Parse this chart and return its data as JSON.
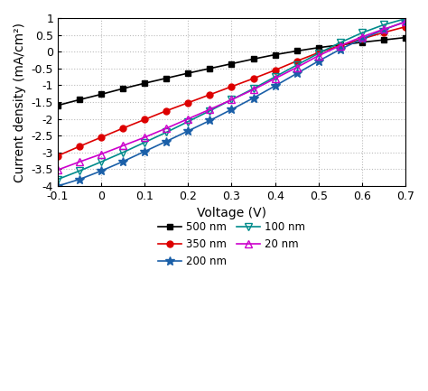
{
  "title": "",
  "xlabel": "Voltage (V)",
  "ylabel": "Current density (mA/cm²)",
  "xlim": [
    -0.1,
    0.7
  ],
  "ylim": [
    -4,
    1
  ],
  "xticks": [
    -0.1,
    0.0,
    0.1,
    0.2,
    0.3,
    0.4,
    0.5,
    0.6,
    0.7
  ],
  "yticks": [
    -4,
    -3.5,
    -3,
    -2.5,
    -2,
    -1.5,
    -1,
    -0.5,
    0,
    0.5,
    1
  ],
  "series": [
    {
      "label": "500 nm",
      "color": "#000000",
      "marker": "s",
      "marker_open": false,
      "marker_color": "#000000",
      "x": [
        -0.1,
        -0.05,
        0.0,
        0.05,
        0.1,
        0.15,
        0.2,
        0.25,
        0.3,
        0.35,
        0.4,
        0.45,
        0.5,
        0.55,
        0.6,
        0.65,
        0.7
      ],
      "y": [
        -1.6,
        -1.43,
        -1.27,
        -1.1,
        -0.94,
        -0.79,
        -0.64,
        -0.5,
        -0.36,
        -0.22,
        -0.09,
        0.02,
        0.12,
        0.2,
        0.28,
        0.35,
        0.42
      ]
    },
    {
      "label": "350 nm",
      "color": "#dd0000",
      "marker": "o",
      "marker_open": false,
      "marker_color": "#dd0000",
      "x": [
        -0.1,
        -0.05,
        0.0,
        0.05,
        0.1,
        0.15,
        0.2,
        0.25,
        0.3,
        0.35,
        0.4,
        0.45,
        0.5,
        0.55,
        0.6,
        0.65,
        0.7
      ],
      "y": [
        -3.1,
        -2.82,
        -2.55,
        -2.28,
        -2.02,
        -1.76,
        -1.52,
        -1.28,
        -1.04,
        -0.8,
        -0.55,
        -0.28,
        -0.03,
        0.18,
        0.38,
        0.57,
        0.74
      ]
    },
    {
      "label": "200 nm",
      "color": "#1a5fa8",
      "marker": "*",
      "marker_open": false,
      "marker_color": "#1a5fa8",
      "x": [
        -0.1,
        -0.05,
        0.0,
        0.05,
        0.1,
        0.15,
        0.2,
        0.25,
        0.3,
        0.35,
        0.4,
        0.45,
        0.5,
        0.55,
        0.6,
        0.65,
        0.7
      ],
      "y": [
        -4.0,
        -3.8,
        -3.55,
        -3.27,
        -2.97,
        -2.67,
        -2.36,
        -2.05,
        -1.72,
        -1.38,
        -1.02,
        -0.65,
        -0.28,
        0.07,
        0.38,
        0.65,
        0.9
      ]
    },
    {
      "label": "100 nm",
      "color": "#008b8b",
      "marker": "v",
      "marker_open": true,
      "marker_color": "#008b8b",
      "x": [
        -0.1,
        -0.05,
        0.0,
        0.05,
        0.1,
        0.15,
        0.2,
        0.25,
        0.3,
        0.35,
        0.4,
        0.45,
        0.5,
        0.55,
        0.6,
        0.65,
        0.7
      ],
      "y": [
        -3.8,
        -3.55,
        -3.28,
        -3.0,
        -2.7,
        -2.4,
        -2.08,
        -1.76,
        -1.43,
        -1.1,
        -0.75,
        -0.4,
        -0.05,
        0.27,
        0.56,
        0.8,
        0.98
      ]
    },
    {
      "label": "20 nm",
      "color": "#cc00cc",
      "marker": "^",
      "marker_open": true,
      "marker_color": "#cc00cc",
      "x": [
        -0.1,
        -0.05,
        0.0,
        0.05,
        0.1,
        0.15,
        0.2,
        0.25,
        0.3,
        0.35,
        0.4,
        0.45,
        0.5,
        0.55,
        0.6,
        0.65,
        0.7
      ],
      "y": [
        -3.52,
        -3.28,
        -3.05,
        -2.8,
        -2.55,
        -2.28,
        -2.0,
        -1.72,
        -1.43,
        -1.13,
        -0.8,
        -0.47,
        -0.12,
        0.18,
        0.44,
        0.67,
        0.88
      ]
    }
  ],
  "grid_color": "#bbbbbb",
  "background_color": "#ffffff",
  "figsize": [
    4.74,
    4.33
  ],
  "dpi": 100
}
